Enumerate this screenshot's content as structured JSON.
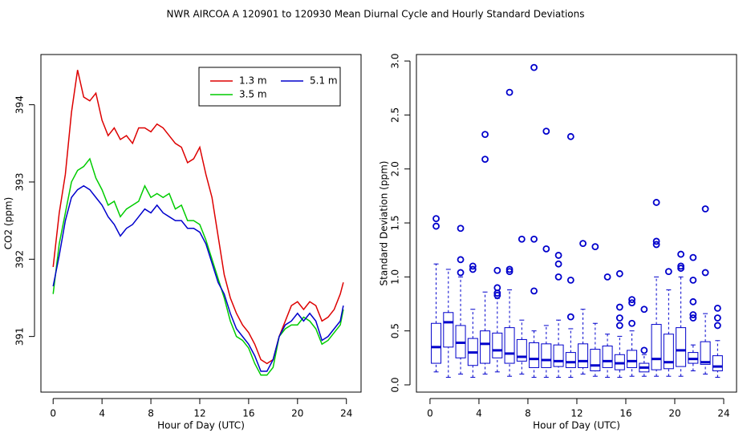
{
  "title": "NWR   AIRCOA A   120901 to 120930   Mean Diurnal Cycle and Hourly Standard Deviations",
  "chart_data": [
    {
      "type": "line",
      "xlabel": "Hour of Day (UTC)",
      "ylabel": "CO2 (ppm)",
      "x": [
        0,
        0.5,
        1,
        1.5,
        2,
        2.5,
        3,
        3.5,
        4,
        4.5,
        5,
        5.5,
        6,
        6.5,
        7,
        7.5,
        8,
        8.5,
        9,
        9.5,
        10,
        10.5,
        11,
        11.5,
        12,
        12.5,
        13,
        13.5,
        14,
        14.5,
        15,
        15.5,
        16,
        16.5,
        17,
        17.5,
        18,
        18.5,
        19,
        19.5,
        20,
        20.5,
        21,
        21.5,
        22,
        22.5,
        23,
        23.5,
        23.75
      ],
      "series": [
        {
          "name": "1.3 m",
          "color": "#dd0000",
          "values": [
            391.9,
            392.6,
            393.1,
            393.9,
            394.45,
            394.1,
            394.05,
            394.15,
            393.8,
            393.6,
            393.7,
            393.55,
            393.6,
            393.5,
            393.7,
            393.7,
            393.65,
            393.75,
            393.7,
            393.6,
            393.5,
            393.45,
            393.25,
            393.3,
            393.45,
            393.1,
            392.8,
            392.3,
            391.8,
            391.5,
            391.3,
            391.15,
            391.05,
            390.9,
            390.7,
            390.65,
            390.7,
            391.0,
            391.2,
            391.4,
            391.45,
            391.35,
            391.45,
            391.4,
            391.2,
            391.25,
            391.35,
            391.55,
            391.7
          ]
        },
        {
          "name": "3.5 m",
          "color": "#00cc00",
          "values": [
            391.55,
            392.2,
            392.6,
            393.0,
            393.15,
            393.2,
            393.3,
            393.05,
            392.9,
            392.7,
            392.75,
            392.55,
            392.65,
            392.7,
            392.75,
            392.95,
            392.8,
            392.85,
            392.8,
            392.85,
            392.65,
            392.7,
            392.5,
            392.5,
            392.45,
            392.25,
            392.0,
            391.75,
            391.5,
            391.2,
            391.0,
            390.95,
            390.85,
            390.65,
            390.5,
            390.5,
            390.6,
            391.0,
            391.1,
            391.15,
            391.15,
            391.25,
            391.2,
            391.1,
            390.9,
            390.95,
            391.05,
            391.15,
            391.35
          ]
        },
        {
          "name": "5.1 m",
          "color": "#0000cc",
          "values": [
            391.65,
            392.05,
            392.5,
            392.8,
            392.9,
            392.95,
            392.9,
            392.8,
            392.7,
            392.55,
            392.45,
            392.3,
            392.4,
            392.45,
            392.55,
            392.65,
            392.6,
            392.7,
            392.6,
            392.55,
            392.5,
            392.5,
            392.4,
            392.4,
            392.35,
            392.2,
            391.95,
            391.7,
            391.55,
            391.3,
            391.1,
            391.0,
            390.9,
            390.75,
            390.55,
            390.55,
            390.7,
            391.0,
            391.15,
            391.2,
            391.3,
            391.2,
            391.3,
            391.2,
            390.95,
            391.0,
            391.1,
            391.2,
            391.4
          ]
        }
      ],
      "xlim": [
        -1,
        25.2
      ],
      "xticks": [
        0,
        4,
        8,
        12,
        16,
        20,
        24
      ],
      "ylim": [
        390.28,
        394.65
      ],
      "yticks": [
        391,
        392,
        393,
        394
      ],
      "legend": "topright"
    },
    {
      "type": "box",
      "xlabel": "Hour of Day (UTC)",
      "ylabel": "Standard Deviation (ppm)",
      "color": "#0000cc",
      "x": [
        0.5,
        1.5,
        2.5,
        3.5,
        4.5,
        5.5,
        6.5,
        7.5,
        8.5,
        9.5,
        10.5,
        11.5,
        12.5,
        13.5,
        14.5,
        15.5,
        16.5,
        17.5,
        18.5,
        19.5,
        20.5,
        21.5,
        22.5,
        23.5
      ],
      "boxes": [
        {
          "low": 0.12,
          "q1": 0.2,
          "median": 0.35,
          "q3": 0.57,
          "high": 1.12,
          "outliers": [
            1.47,
            1.54
          ]
        },
        {
          "low": 0.07,
          "q1": 0.35,
          "median": 0.58,
          "q3": 0.67,
          "high": 1.07,
          "outliers": []
        },
        {
          "low": 0.1,
          "q1": 0.25,
          "median": 0.39,
          "q3": 0.55,
          "high": 1.0,
          "outliers": [
            1.04,
            1.16,
            1.45
          ]
        },
        {
          "low": 0.07,
          "q1": 0.18,
          "median": 0.3,
          "q3": 0.43,
          "high": 0.7,
          "outliers": [
            1.07,
            1.1
          ]
        },
        {
          "low": 0.1,
          "q1": 0.2,
          "median": 0.38,
          "q3": 0.5,
          "high": 0.86,
          "outliers": [
            2.09,
            2.32
          ]
        },
        {
          "low": 0.12,
          "q1": 0.25,
          "median": 0.32,
          "q3": 0.48,
          "high": 0.8,
          "outliers": [
            0.83,
            0.85,
            0.9,
            1.06
          ]
        },
        {
          "low": 0.08,
          "q1": 0.2,
          "median": 0.29,
          "q3": 0.53,
          "high": 0.88,
          "outliers": [
            1.05,
            1.07,
            2.71
          ]
        },
        {
          "low": 0.1,
          "q1": 0.22,
          "median": 0.26,
          "q3": 0.42,
          "high": 0.6,
          "outliers": [
            1.35
          ]
        },
        {
          "low": 0.07,
          "q1": 0.16,
          "median": 0.24,
          "q3": 0.39,
          "high": 0.5,
          "outliers": [
            0.87,
            1.35,
            2.94
          ]
        },
        {
          "low": 0.07,
          "q1": 0.16,
          "median": 0.23,
          "q3": 0.38,
          "high": 0.55,
          "outliers": [
            1.26,
            2.35
          ]
        },
        {
          "low": 0.07,
          "q1": 0.17,
          "median": 0.22,
          "q3": 0.37,
          "high": 0.6,
          "outliers": [
            1.0,
            1.12,
            1.2
          ]
        },
        {
          "low": 0.07,
          "q1": 0.16,
          "median": 0.21,
          "q3": 0.3,
          "high": 0.52,
          "outliers": [
            0.63,
            0.97,
            2.3
          ]
        },
        {
          "low": 0.1,
          "q1": 0.16,
          "median": 0.22,
          "q3": 0.38,
          "high": 0.7,
          "outliers": [
            1.31
          ]
        },
        {
          "low": 0.08,
          "q1": 0.13,
          "median": 0.18,
          "q3": 0.33,
          "high": 0.57,
          "outliers": [
            1.28
          ]
        },
        {
          "low": 0.07,
          "q1": 0.16,
          "median": 0.22,
          "q3": 0.36,
          "high": 0.47,
          "outliers": [
            1.0
          ]
        },
        {
          "low": 0.07,
          "q1": 0.14,
          "median": 0.2,
          "q3": 0.28,
          "high": 0.45,
          "outliers": [
            0.55,
            0.62,
            0.72,
            1.03
          ]
        },
        {
          "low": 0.08,
          "q1": 0.16,
          "median": 0.22,
          "q3": 0.32,
          "high": 0.5,
          "outliers": [
            0.57,
            0.76,
            0.79
          ]
        },
        {
          "low": 0.08,
          "q1": 0.12,
          "median": 0.16,
          "q3": 0.2,
          "high": 0.28,
          "outliers": [
            0.32,
            0.7
          ]
        },
        {
          "low": 0.08,
          "q1": 0.14,
          "median": 0.24,
          "q3": 0.56,
          "high": 1.0,
          "outliers": [
            1.3,
            1.33,
            1.69
          ]
        },
        {
          "low": 0.08,
          "q1": 0.15,
          "median": 0.21,
          "q3": 0.47,
          "high": 0.88,
          "outliers": [
            1.05
          ]
        },
        {
          "low": 0.08,
          "q1": 0.17,
          "median": 0.32,
          "q3": 0.53,
          "high": 1.0,
          "outliers": [
            1.08,
            1.1,
            1.21
          ]
        },
        {
          "low": 0.13,
          "q1": 0.2,
          "median": 0.24,
          "q3": 0.3,
          "high": 0.37,
          "outliers": [
            0.62,
            0.65,
            0.77,
            0.97,
            1.18
          ]
        },
        {
          "low": 0.1,
          "q1": 0.19,
          "median": 0.21,
          "q3": 0.4,
          "high": 0.66,
          "outliers": [
            1.04,
            1.63
          ]
        },
        {
          "low": 0.07,
          "q1": 0.13,
          "median": 0.17,
          "q3": 0.27,
          "high": 0.41,
          "outliers": [
            0.55,
            0.62,
            0.71
          ]
        }
      ],
      "xlim": [
        -1.11,
        25.05
      ],
      "xticks": [
        0,
        4,
        8,
        12,
        16,
        20,
        24
      ],
      "ylim": [
        -0.067,
        3.06
      ],
      "yticks": [
        {
          "value": 0,
          "label": "0.0"
        },
        0.5,
        {
          "value": 1,
          "label": "1.0"
        },
        1.5,
        {
          "value": 2,
          "label": "2.0"
        },
        2.5,
        {
          "value": 3,
          "label": "3.0"
        }
      ]
    }
  ]
}
